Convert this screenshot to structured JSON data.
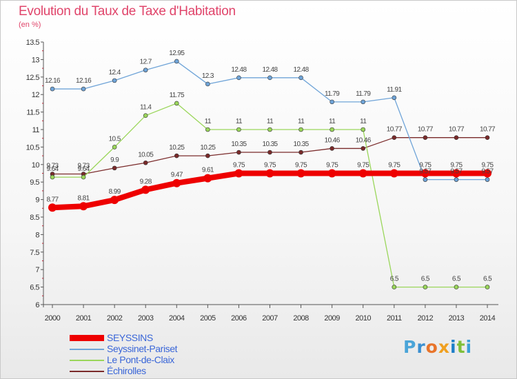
{
  "title": "Evolution du Taux de Taxe d'Habitation",
  "subtitle": "(en %)",
  "brand": [
    "P",
    "r",
    "o",
    "x",
    "i",
    "t",
    "i"
  ],
  "chart_data": {
    "type": "line",
    "x": [
      "2000",
      "2001",
      "2002",
      "2003",
      "2004",
      "2005",
      "2006",
      "2007",
      "2008",
      "2009",
      "2010",
      "2011",
      "2012",
      "2013",
      "2014"
    ],
    "ylim": [
      6,
      13.5
    ],
    "yticks": [
      "6",
      "6.5",
      "7",
      "7.5",
      "8",
      "8.5",
      "9",
      "9.5",
      "10",
      "10.5",
      "11",
      "11.5",
      "12",
      "12.5",
      "13",
      "13.5"
    ],
    "grid": false,
    "legend": "bottom-left",
    "series": [
      {
        "name": "Échirolles",
        "color": "#7a2a2a",
        "width": 1.3,
        "marker": 3,
        "values": [
          9.73,
          9.73,
          9.9,
          10.05,
          10.25,
          10.25,
          10.35,
          10.35,
          10.35,
          10.46,
          10.46,
          10.77,
          10.77,
          10.77,
          10.77
        ],
        "labels": [
          "9.73",
          "9.73",
          "9.9",
          "10.05",
          "10.25",
          "10.25",
          "10.35",
          "10.35",
          "10.35",
          "10.46",
          "10.46",
          "10.77",
          "10.77",
          "10.77",
          "10.77"
        ]
      },
      {
        "name": "Le Pont-de-Claix",
        "color": "#9ad65a",
        "width": 1.3,
        "marker": 3,
        "values": [
          9.64,
          9.64,
          10.5,
          11.4,
          11.75,
          11,
          11,
          11,
          11,
          11,
          11,
          6.5,
          6.5,
          6.5,
          6.5
        ],
        "labels": [
          "9.64",
          "9.64",
          "10.5",
          "11.4",
          "11.75",
          "11",
          "11",
          "11",
          "11",
          "11",
          "11",
          "6.5",
          "6.5",
          "6.5",
          "6.5"
        ]
      },
      {
        "name": "Seyssinet-Pariset",
        "color": "#6fa4d8",
        "width": 1.3,
        "marker": 3,
        "values": [
          12.16,
          12.16,
          12.4,
          12.7,
          12.95,
          12.3,
          12.48,
          12.48,
          12.48,
          11.79,
          11.79,
          11.91,
          9.57,
          9.57,
          9.57
        ],
        "labels": [
          "12.16",
          "12.16",
          "12.4",
          "12.7",
          "12.95",
          "12.3",
          "12.48",
          "12.48",
          "12.48",
          "11.79",
          "11.79",
          "11.91",
          "9.57",
          "9.57",
          "9.57"
        ]
      },
      {
        "name": "SEYSSINS",
        "color": "#ee0000",
        "width": 8,
        "marker": 6,
        "values": [
          8.77,
          8.81,
          8.99,
          9.28,
          9.47,
          9.61,
          9.75,
          9.75,
          9.75,
          9.75,
          9.75,
          9.75,
          9.75,
          9.75,
          9.75
        ],
        "labels": [
          "8.77",
          "8.81",
          "8.99",
          "9.28",
          "9.47",
          "9.61",
          "9.75",
          "9.75",
          "9.75",
          "9.75",
          "9.75",
          "9.75",
          "9.75",
          "9.75",
          "9.75"
        ]
      }
    ],
    "legend_order": [
      "SEYSSINS",
      "Seyssinet-Pariset",
      "Le Pont-de-Claix",
      "Échirolles"
    ]
  }
}
